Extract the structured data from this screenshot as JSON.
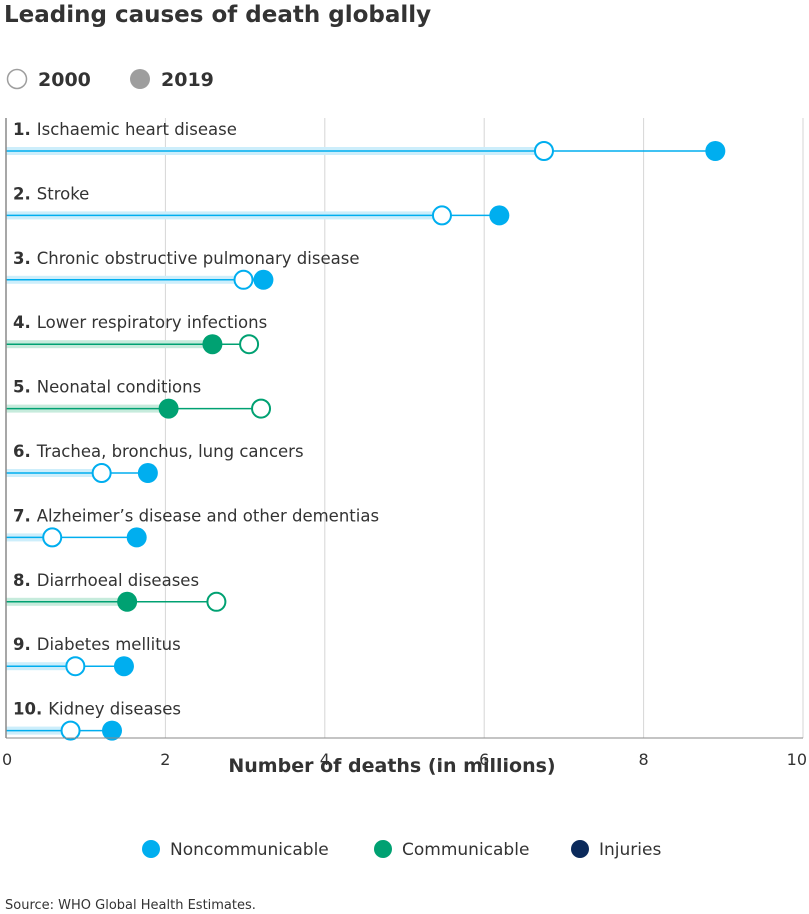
{
  "chart_data": {
    "type": "dumbbell",
    "title": "Leading causes of death globally",
    "year_legend": [
      {
        "label": "2000",
        "style": "hollow"
      },
      {
        "label": "2019",
        "style": "filled"
      }
    ],
    "xlabel": "Number of deaths (in millions)",
    "xlim": [
      0,
      10
    ],
    "x_ticks": [
      "0",
      "2",
      "4",
      "6",
      "8",
      "10"
    ],
    "grid": true,
    "categories_legend": [
      {
        "key": "noncommunicable",
        "label": "Noncommunicable",
        "color": "#00aeef"
      },
      {
        "key": "communicable",
        "label": "Communicable",
        "color": "#00a172"
      },
      {
        "key": "injuries",
        "label": "Injuries",
        "color": "#0b2a5b"
      }
    ],
    "causes": [
      {
        "rank": "1.",
        "name": "Ischaemic heart disease",
        "category": "noncommunicable",
        "v2000": 6.75,
        "v2019": 8.9
      },
      {
        "rank": "2.",
        "name": "Stroke",
        "category": "noncommunicable",
        "v2000": 5.47,
        "v2019": 6.19
      },
      {
        "rank": "3.",
        "name": "Chronic obstructive pulmonary disease",
        "category": "noncommunicable",
        "v2000": 2.98,
        "v2019": 3.23
      },
      {
        "rank": "4.",
        "name": "Lower respiratory infections",
        "category": "communicable",
        "v2000": 3.05,
        "v2019": 2.59
      },
      {
        "rank": "5.",
        "name": "Neonatal conditions",
        "category": "communicable",
        "v2000": 3.2,
        "v2019": 2.04
      },
      {
        "rank": "6.",
        "name": "Trachea, bronchus, lung cancers",
        "category": "noncommunicable",
        "v2000": 1.2,
        "v2019": 1.78
      },
      {
        "rank": "7.",
        "name": "Alzheimer’s disease and other dementias",
        "category": "noncommunicable",
        "v2000": 0.58,
        "v2019": 1.64
      },
      {
        "rank": "8.",
        "name": "Diarrhoeal diseases",
        "category": "communicable",
        "v2000": 2.64,
        "v2019": 1.52
      },
      {
        "rank": "9.",
        "name": "Diabetes mellitus",
        "category": "noncommunicable",
        "v2000": 0.87,
        "v2019": 1.48
      },
      {
        "rank": "10.",
        "name": "Kidney diseases",
        "category": "noncommunicable",
        "v2000": 0.81,
        "v2019": 1.33
      }
    ],
    "source": "Source: WHO Global Health Estimates."
  }
}
